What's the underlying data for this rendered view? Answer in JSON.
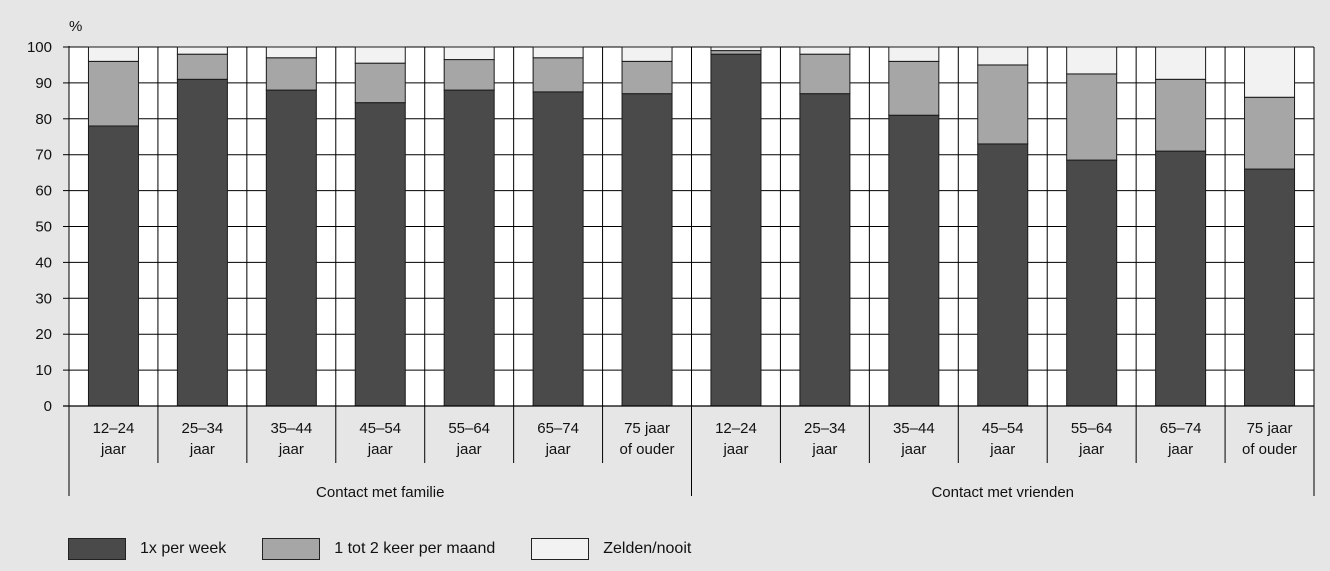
{
  "chart_data": {
    "type": "bar",
    "stacked": true,
    "y_unit_label": "%",
    "ylim": [
      0,
      100
    ],
    "yticks": [
      0,
      10,
      20,
      30,
      40,
      50,
      60,
      70,
      80,
      90,
      100
    ],
    "grid": true,
    "groups": [
      {
        "label": "Contact met familie",
        "start": 0,
        "count": 7
      },
      {
        "label": "Contact met vrienden",
        "start": 7,
        "count": 7
      }
    ],
    "categories": [
      [
        "12–24",
        "jaar"
      ],
      [
        "25–34",
        "jaar"
      ],
      [
        "35–44",
        "jaar"
      ],
      [
        "45–54",
        "jaar"
      ],
      [
        "55–64",
        "jaar"
      ],
      [
        "65–74",
        "jaar"
      ],
      [
        "75 jaar",
        "of ouder"
      ],
      [
        "12–24",
        "jaar"
      ],
      [
        "25–34",
        "jaar"
      ],
      [
        "35–44",
        "jaar"
      ],
      [
        "45–54",
        "jaar"
      ],
      [
        "55–64",
        "jaar"
      ],
      [
        "65–74",
        "jaar"
      ],
      [
        "75 jaar",
        "of ouder"
      ]
    ],
    "series": [
      {
        "name": "1x per week",
        "color": "#4a4a4a",
        "values": [
          78,
          91,
          88,
          84.5,
          88,
          87.5,
          87,
          98,
          87,
          81,
          73,
          68.5,
          71,
          66
        ]
      },
      {
        "name": "1 tot 2 keer per maand",
        "color": "#a6a6a6",
        "values": [
          18,
          7,
          9,
          11,
          8.5,
          9.5,
          9,
          1,
          11,
          15,
          22,
          24,
          20,
          20
        ]
      },
      {
        "name": "Zelden/nooit",
        "color": "#f2f2f2",
        "values": [
          4,
          2,
          3,
          4.5,
          3.5,
          3,
          4,
          1,
          2,
          4,
          5,
          7.5,
          9,
          14
        ]
      }
    ],
    "legend_position": "bottom-left"
  }
}
